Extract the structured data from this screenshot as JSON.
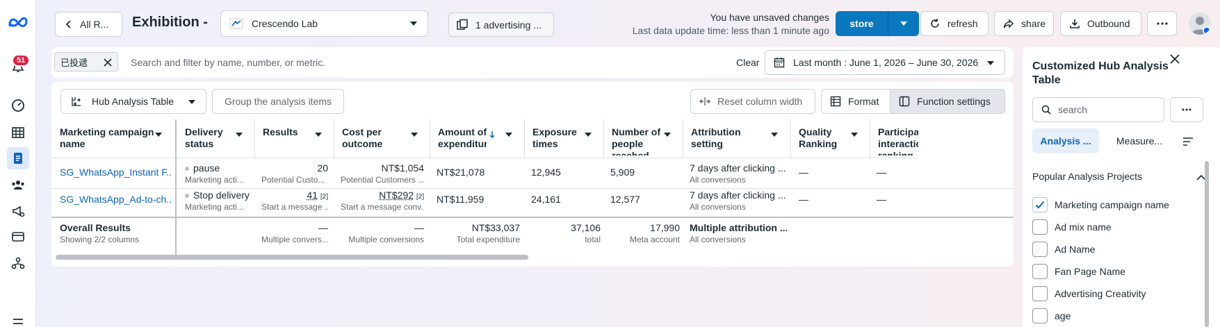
{
  "header": {
    "back_label": "All R...",
    "page_title": "Exhibition -",
    "account_name": "Crescendo Lab",
    "ads_selector": "1 advertising ...",
    "unsaved_line1": "You have unsaved changes",
    "unsaved_line2": "Last data update time: less than 1 minute ago",
    "store_label": "store",
    "refresh_label": "refresh",
    "share_label": "share",
    "outbound_label": "Outbound"
  },
  "rail": {
    "notification_count": "51"
  },
  "filter": {
    "chip_label": "已投遞",
    "search_placeholder": "Search and filter by name, number, or metric.",
    "clear_label": "Clear",
    "date_range": "Last month : June 1, 2026 – June 30, 2026"
  },
  "toolbar": {
    "table_selector": "Hub Analysis Table",
    "group_label": "Group the analysis items",
    "reset_label": "Reset column width",
    "format_label": "Format",
    "function_label": "Function settings"
  },
  "table": {
    "columns": [
      "Marketing campaign name",
      "Delivery status",
      "Results",
      "Cost per outcome",
      "Amount of expenditure",
      "Exposure times",
      "Number of people reached",
      "Attribution setting",
      "Quality Ranking",
      "Participation interaction ranking"
    ],
    "rows": [
      {
        "name": "SG_WhatsApp_Instant F...",
        "status": "pause",
        "status_sub": "Marketing acti...",
        "results": "20",
        "results_note": "",
        "results_sub": "Potential Custo...",
        "cost": "NT$1,054",
        "cost_note": "",
        "cost_sub": "Potential Customers ...",
        "amount": "NT$21,078",
        "exposure": "12,945",
        "reached": "5,909",
        "attribution": "7 days after clicking ...",
        "attribution_sub": "All conversions",
        "quality": "—",
        "participation": "—"
      },
      {
        "name": "SG_WhatsApp_Ad-to-ch...",
        "status": "Stop delivery",
        "status_sub": "Marketing acti...",
        "results": "41",
        "results_note": "[2]",
        "results_sub": "Start a message ...",
        "cost": "NT$292",
        "cost_note": "[2]",
        "cost_sub": "Start a message conv...",
        "amount": "NT$11,959",
        "exposure": "24,161",
        "reached": "12,577",
        "attribution": "7 days after clicking ...",
        "attribution_sub": "All conversions",
        "quality": "—",
        "participation": "—"
      }
    ],
    "total": {
      "label": "Overall Results",
      "sub": "Showing 2/2 columns",
      "results": "—",
      "results_sub": "Multiple convers...",
      "cost": "—",
      "cost_sub": "Multiple conversions",
      "amount": "NT$33,037",
      "amount_sub": "Total expenditure",
      "exposure": "37,106",
      "exposure_sub": "total",
      "reached": "17,990",
      "reached_sub": "Meta account",
      "attribution": "Multiple attribution ...",
      "attribution_sub": "All conversions"
    }
  },
  "side": {
    "title": "Customized Hub Analysis Table",
    "search_placeholder": "search",
    "tab_active": "Analysis ...",
    "tab_other": "Measure...",
    "section_title": "Popular Analysis Projects",
    "items": [
      {
        "label": "Marketing campaign name",
        "checked": true
      },
      {
        "label": "Ad mix name",
        "checked": false
      },
      {
        "label": "Ad Name",
        "checked": false
      },
      {
        "label": "Fan Page Name",
        "checked": false
      },
      {
        "label": "Advertising Creativity",
        "checked": false
      },
      {
        "label": "age",
        "checked": false
      }
    ]
  },
  "colors": {
    "accent": "#0a78be",
    "link": "#0a66c2",
    "badge": "#e41e3f"
  }
}
